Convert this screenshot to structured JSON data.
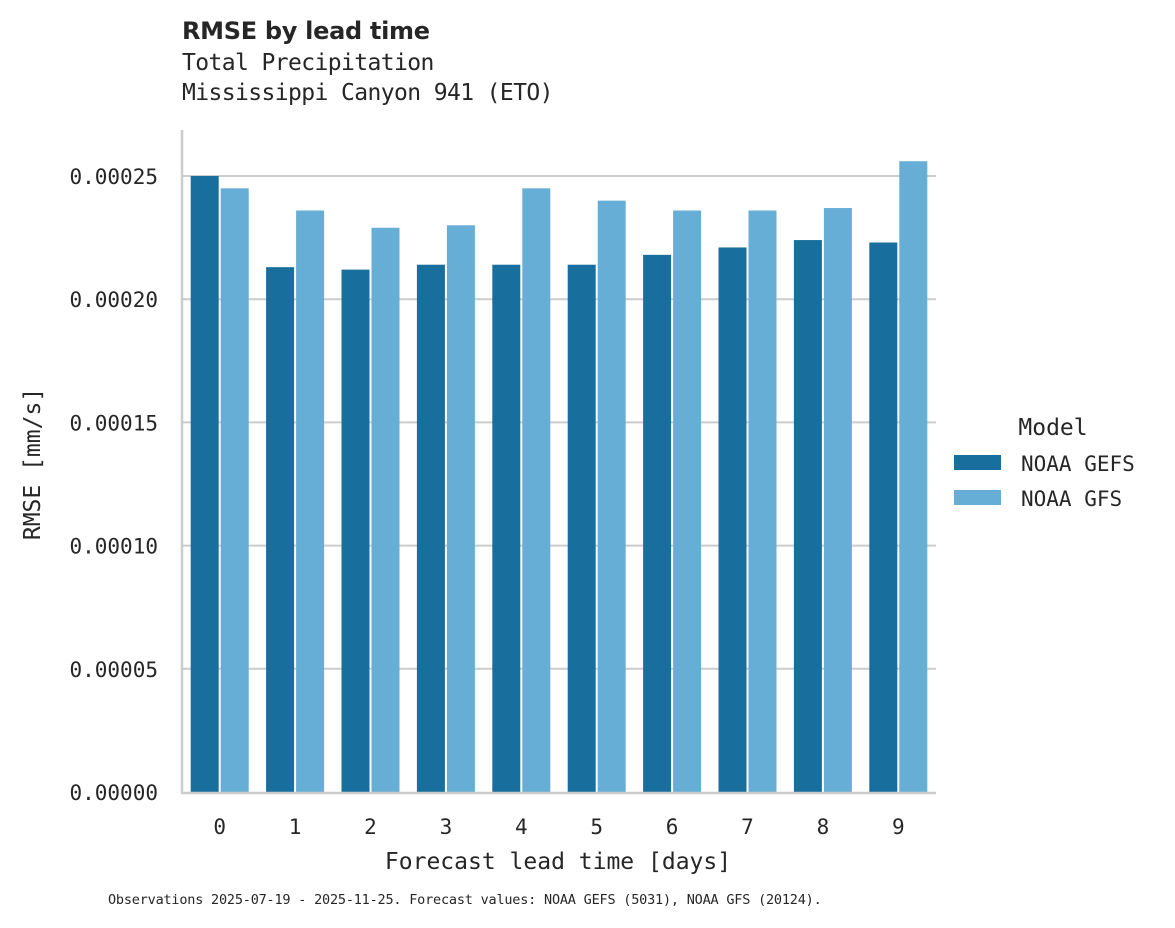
{
  "title": "RMSE by lead time",
  "subtitle_line1": "Total Precipitation",
  "subtitle_line2": "Mississippi Canyon 941 (ETO)",
  "footnote": "Observations 2025-07-19 - 2025-11-25. Forecast values: NOAA GEFS (5031), NOAA GFS (20124).",
  "colors": {
    "gefs": "#186e9c",
    "gfs": "#67aed6",
    "grid": "#cccccc",
    "axis": "#cccccc"
  },
  "chart_data": {
    "type": "bar",
    "title": "RMSE by lead time",
    "subtitle": "Total Precipitation / Mississippi Canyon 941 (ETO)",
    "xlabel": "Forecast lead time [days]",
    "ylabel": "RMSE [mm/s]",
    "categories": [
      "0",
      "1",
      "2",
      "3",
      "4",
      "5",
      "6",
      "7",
      "8",
      "9"
    ],
    "series": [
      {
        "name": "NOAA GEFS",
        "values": [
          0.00025,
          0.000213,
          0.000212,
          0.000214,
          0.000214,
          0.000214,
          0.000218,
          0.000221,
          0.000224,
          0.000223
        ]
      },
      {
        "name": "NOAA GFS",
        "values": [
          0.000245,
          0.000236,
          0.000229,
          0.00023,
          0.000245,
          0.00024,
          0.000236,
          0.000236,
          0.000237,
          0.000256
        ]
      }
    ],
    "yticks": [
      "0.00000",
      "0.00005",
      "0.00010",
      "0.00015",
      "0.00020",
      "0.00025"
    ],
    "ylim": [
      0,
      0.00027
    ],
    "grid": "horizontal",
    "legend": {
      "title": "Model",
      "position": "right",
      "entries": [
        "NOAA GEFS",
        "NOAA GFS"
      ]
    }
  }
}
